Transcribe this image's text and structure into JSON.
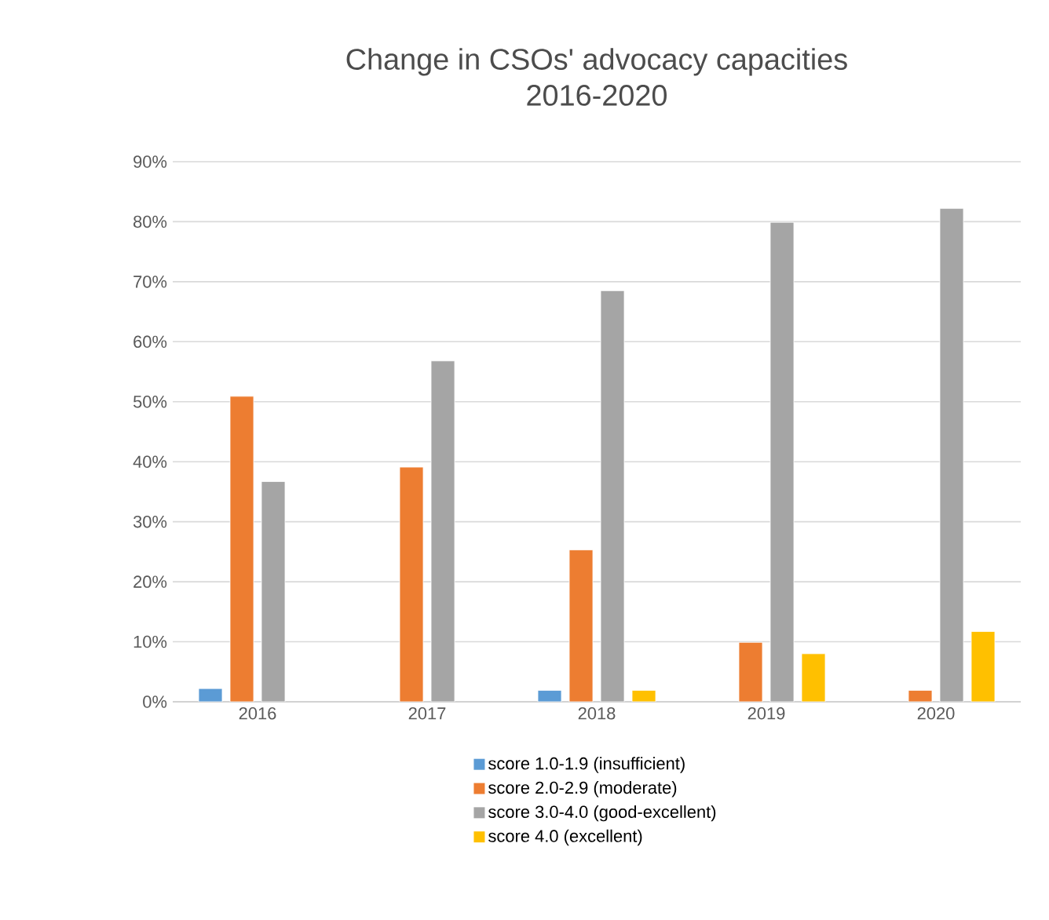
{
  "chart_data": {
    "type": "bar",
    "title": "Change in CSOs' advocacy capacities",
    "subtitle": "2016-2020",
    "categories": [
      "2016",
      "2017",
      "2018",
      "2019",
      "2020"
    ],
    "series": [
      {
        "name": "score 1.0-1.9 (insufficient)",
        "color": "#5b9bd5",
        "values": [
          2.2,
          null,
          1.9,
          null,
          null
        ]
      },
      {
        "name": "score 2.0-2.9 (moderate)",
        "color": "#ed7d31",
        "values": [
          50.9,
          39.1,
          25.3,
          9.9,
          1.9
        ]
      },
      {
        "name": "score 3.0-4.0 (good-excellent)",
        "color": "#a5a5a5",
        "values": [
          36.7,
          56.8,
          68.5,
          79.9,
          82.2
        ]
      },
      {
        "name": "score 4.0 (excellent)",
        "color": "#ffc000",
        "values": [
          null,
          null,
          1.9,
          8.0,
          11.7
        ]
      }
    ],
    "ylim": [
      0,
      90
    ],
    "yticks": [
      {
        "value": 0,
        "label": "0%"
      },
      {
        "value": 10,
        "label": "10%"
      },
      {
        "value": 20,
        "label": "20%"
      },
      {
        "value": 30,
        "label": "30%"
      },
      {
        "value": 40,
        "label": "40%"
      },
      {
        "value": 50,
        "label": "50%"
      },
      {
        "value": 60,
        "label": "60%"
      },
      {
        "value": 70,
        "label": "70%"
      },
      {
        "value": 80,
        "label": "80%"
      },
      {
        "value": 90,
        "label": "90%"
      }
    ],
    "grid": "y",
    "legend": "bottom"
  }
}
